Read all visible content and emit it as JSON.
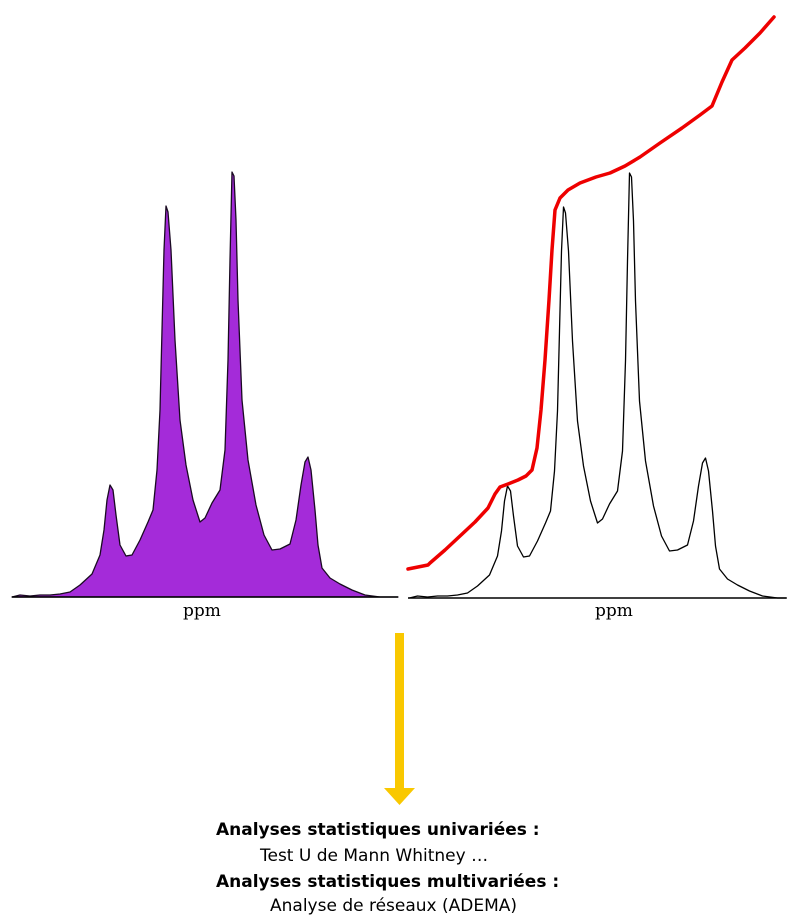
{
  "panels": [
    {
      "axis_label": "ppm",
      "fill": "#a42bd9",
      "stroke": "#1a0a22"
    },
    {
      "axis_label": "ppm",
      "fill": "none",
      "stroke": "#000000",
      "integral_color": "#ee0000"
    }
  ],
  "arrow_color": "#f9c800",
  "captions": {
    "univariate_title": "Analyses statistiques univariées :",
    "univariate_method": "Test U de Mann Whitney …",
    "multivariate_title": "Analyses statistiques multivariées :",
    "multivariate_method": "Analyse de réseaux (ADEMA)"
  }
}
